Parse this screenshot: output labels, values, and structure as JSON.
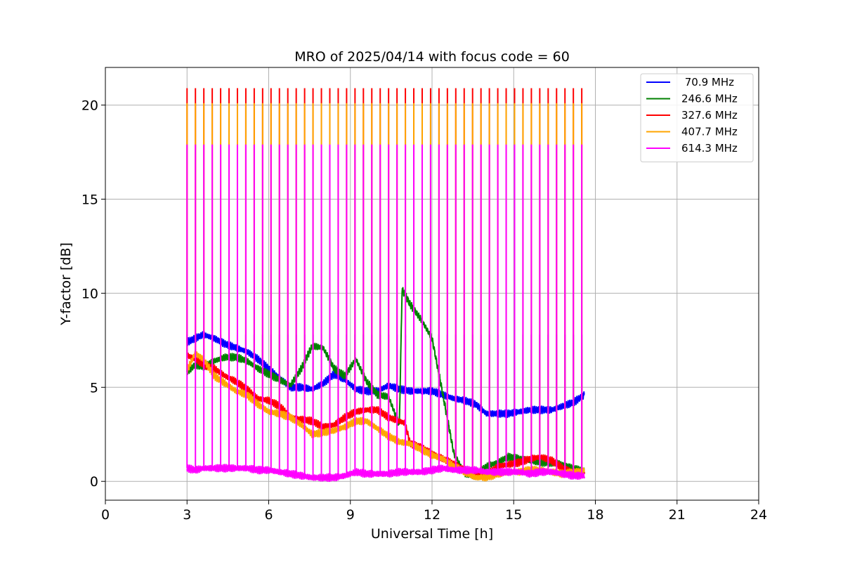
{
  "chart_data": {
    "type": "line",
    "title": "MRO of 2025/04/14 with focus code = 60",
    "xlabel": "Universal Time [h]",
    "ylabel": "Y-factor [dB]",
    "xlim": [
      0,
      24
    ],
    "ylim": [
      -1,
      22
    ],
    "xticks": [
      0,
      3,
      6,
      9,
      12,
      15,
      18,
      21,
      24
    ],
    "yticks": [
      0,
      5,
      10,
      15,
      20
    ],
    "grid": true,
    "legend_position": "top-right",
    "calibration_spikes": {
      "start_h": 3.0,
      "end_h": 17.5,
      "count": 48,
      "note": "periodic calibration pulses on every channel"
    },
    "series": [
      {
        "name": " 70.9 MHz",
        "color": "#0000ff",
        "spike_peak": 7.8,
        "x": [
          3.0,
          3.3,
          3.6,
          4.0,
          4.4,
          4.8,
          5.2,
          5.6,
          6.0,
          6.4,
          6.8,
          7.2,
          7.6,
          8.0,
          8.4,
          8.8,
          9.2,
          9.6,
          10.0,
          10.4,
          10.8,
          11.2,
          11.6,
          12.0,
          12.4,
          12.8,
          13.2,
          13.6,
          14.0,
          14.4,
          14.8,
          15.2,
          15.6,
          16.0,
          16.4,
          16.8,
          17.2,
          17.6
        ],
        "y": [
          7.4,
          7.6,
          7.8,
          7.6,
          7.3,
          7.1,
          6.9,
          6.5,
          6.0,
          5.5,
          5.0,
          5.0,
          4.9,
          5.2,
          5.7,
          5.4,
          4.9,
          4.8,
          4.8,
          5.1,
          4.9,
          4.8,
          4.8,
          4.8,
          4.6,
          4.4,
          4.3,
          4.1,
          3.6,
          3.6,
          3.6,
          3.7,
          3.8,
          3.8,
          3.8,
          4.0,
          4.2,
          4.6
        ]
      },
      {
        "name": "246.6 MHz",
        "color": "#008000",
        "spike_peak": 7.0,
        "x": [
          3.0,
          3.3,
          3.6,
          4.0,
          4.4,
          4.8,
          5.2,
          5.6,
          6.0,
          6.4,
          6.8,
          7.2,
          7.6,
          8.0,
          8.4,
          8.8,
          9.2,
          9.6,
          10.0,
          10.4,
          10.8,
          10.9,
          11.2,
          11.6,
          12.0,
          12.4,
          12.8,
          13.2,
          13.6,
          14.0,
          14.4,
          14.8,
          15.2,
          15.6,
          16.0,
          16.4,
          16.8,
          17.2,
          17.6
        ],
        "y": [
          5.8,
          6.2,
          6.1,
          6.4,
          6.6,
          6.6,
          6.4,
          6.0,
          5.7,
          5.4,
          5.1,
          6.0,
          7.2,
          7.1,
          6.0,
          5.6,
          6.5,
          5.3,
          4.6,
          4.5,
          3.0,
          10.2,
          9.4,
          8.6,
          7.6,
          4.6,
          1.5,
          0.4,
          0.3,
          0.8,
          1.0,
          1.3,
          1.2,
          1.1,
          1.0,
          1.0,
          0.9,
          0.7,
          0.5
        ]
      },
      {
        "name": "327.6 MHz",
        "color": "#ff0000",
        "spike_peak": 20.9,
        "x": [
          3.0,
          3.3,
          3.6,
          4.0,
          4.4,
          4.8,
          5.2,
          5.6,
          6.0,
          6.4,
          6.8,
          7.2,
          7.6,
          8.0,
          8.4,
          8.8,
          9.2,
          9.6,
          10.0,
          10.4,
          10.8,
          11.0,
          11.2,
          11.6,
          12.0,
          12.4,
          12.8,
          13.2,
          13.6,
          14.0,
          14.4,
          14.8,
          15.2,
          15.6,
          16.0,
          16.4,
          16.8,
          17.2,
          17.6
        ],
        "y": [
          6.7,
          6.5,
          6.2,
          6.0,
          5.6,
          5.3,
          4.9,
          4.4,
          4.3,
          4.0,
          3.4,
          3.3,
          3.2,
          2.9,
          3.0,
          3.4,
          3.7,
          3.8,
          3.8,
          3.4,
          3.2,
          3.1,
          2.0,
          1.8,
          1.5,
          1.2,
          0.9,
          0.6,
          0.4,
          0.3,
          0.8,
          0.9,
          1.0,
          1.2,
          1.3,
          1.1,
          0.7,
          0.5,
          0.5
        ]
      },
      {
        "name": "407.7 MHz",
        "color": "#ffa500",
        "spike_peak": 20.1,
        "x": [
          3.0,
          3.3,
          3.6,
          4.0,
          4.4,
          4.8,
          5.2,
          5.6,
          6.0,
          6.4,
          6.8,
          7.2,
          7.6,
          8.0,
          8.4,
          8.8,
          9.2,
          9.6,
          10.0,
          10.4,
          10.8,
          11.2,
          11.6,
          12.0,
          12.4,
          12.8,
          13.2,
          13.6,
          14.0,
          14.4,
          14.8,
          15.2,
          15.6,
          16.0,
          16.4,
          16.8,
          17.2,
          17.6
        ],
        "y": [
          5.9,
          6.8,
          6.5,
          5.6,
          5.2,
          4.8,
          4.6,
          4.1,
          3.7,
          3.6,
          3.4,
          3.0,
          2.5,
          2.6,
          2.7,
          2.9,
          3.2,
          3.2,
          2.8,
          2.4,
          2.1,
          2.0,
          1.7,
          1.4,
          1.2,
          0.8,
          0.5,
          0.2,
          0.2,
          0.4,
          0.5,
          0.5,
          0.6,
          0.6,
          0.5,
          0.4,
          0.5,
          0.6
        ]
      },
      {
        "name": "614.3 MHz",
        "color": "#ff00ff",
        "spike_peak": 17.9,
        "x": [
          3.0,
          3.3,
          3.6,
          4.0,
          4.4,
          4.8,
          5.2,
          5.6,
          6.0,
          6.4,
          6.8,
          7.2,
          7.6,
          8.0,
          8.4,
          8.8,
          9.2,
          9.6,
          10.0,
          10.4,
          10.8,
          11.2,
          11.6,
          12.0,
          12.4,
          12.8,
          13.2,
          13.6,
          14.0,
          14.4,
          14.8,
          15.2,
          15.6,
          16.0,
          16.4,
          16.8,
          17.2,
          17.6
        ],
        "y": [
          0.7,
          0.6,
          0.7,
          0.7,
          0.7,
          0.7,
          0.7,
          0.6,
          0.6,
          0.5,
          0.4,
          0.3,
          0.2,
          0.2,
          0.2,
          0.3,
          0.5,
          0.4,
          0.4,
          0.4,
          0.5,
          0.5,
          0.5,
          0.6,
          0.7,
          0.6,
          0.6,
          0.6,
          0.5,
          0.5,
          0.5,
          0.5,
          0.4,
          0.5,
          0.5,
          0.4,
          0.3,
          0.3
        ]
      }
    ]
  }
}
